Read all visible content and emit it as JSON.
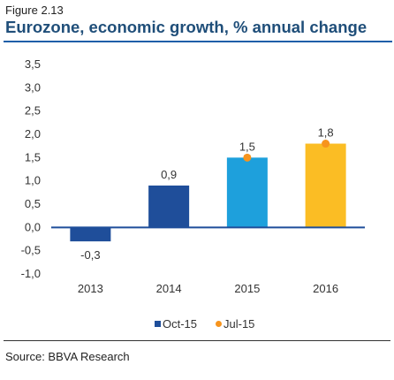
{
  "figure": {
    "label": "Figure 2.13",
    "title": "Eurozone, economic growth, % annual change",
    "source": "Source: BBVA Research"
  },
  "chart_data": {
    "type": "bar",
    "title": "Eurozone, economic growth, % annual change",
    "xlabel": "",
    "ylabel": "",
    "ylim": [
      -1.0,
      3.5
    ],
    "y_ticks": [
      3.5,
      3.0,
      2.5,
      2.0,
      1.5,
      1.0,
      0.5,
      0.0,
      -0.5,
      -1.0
    ],
    "y_tick_labels": [
      "3,5",
      "3,0",
      "2,5",
      "2,0",
      "1,5",
      "1,0",
      "0,5",
      "0,0",
      "-0,5",
      "-1,0"
    ],
    "categories": [
      "2013",
      "2014",
      "2015",
      "2016"
    ],
    "series": [
      {
        "name": "Oct-15",
        "kind": "bar",
        "values": [
          -0.3,
          0.9,
          1.5,
          1.8
        ],
        "value_labels": [
          "-0,3",
          "0,9",
          "1,5",
          "1,8"
        ],
        "colors": [
          "#1f4e9a",
          "#1f4e9a",
          "#1ea0dc",
          "#fbbd24"
        ]
      },
      {
        "name": "Jul-15",
        "kind": "marker",
        "values": [
          null,
          null,
          1.5,
          1.8
        ],
        "color": "#f7941d"
      }
    ],
    "grid": false,
    "legend_position": "bottom"
  }
}
